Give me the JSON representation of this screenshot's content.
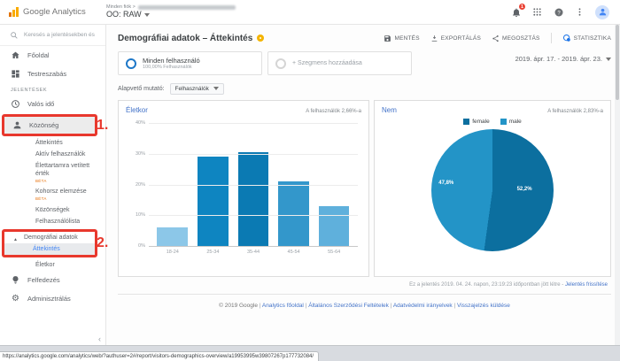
{
  "topbar": {
    "brand": "Google Analytics",
    "account_path": "Minden fiók >",
    "account_name": "OO: RAW",
    "notification_count": "1"
  },
  "sidebar": {
    "search_placeholder": "Keresés a jelentésekben és",
    "home": "Főoldal",
    "customization": "Testreszabás",
    "reports_section": "JELENTÉSEK",
    "realtime": "Valós idő",
    "audience": "Közönség",
    "audience_overview": "Áttekintés",
    "active_users": "Aktív felhasználók",
    "lifetime_value": "Élettartamra vetített érték",
    "beta_badge": "BÉTA",
    "cohort": "Kohorsz elemzése",
    "audiences": "Közönségek",
    "user_explorer": "Felhasználólista",
    "demographics": "Demográfiai adatok",
    "demographics_overview": "Áttekintés",
    "demographics_age": "Életkor",
    "discover": "Felfedezés",
    "admin": "Adminisztrálás"
  },
  "annotations": {
    "step1": "1.",
    "step2": "2."
  },
  "report_header": {
    "title": "Demográfiai adatok – Áttekintés",
    "save": "MENTÉS",
    "export": "EXPORTÁLÁS",
    "share": "MEGOSZTÁS",
    "insights": "STATISZTIKA",
    "date_range": "2019. ápr. 17. - 2019. ápr. 23."
  },
  "segments": {
    "all_users_title": "Minden felhasználó",
    "all_users_subtitle": "100,00% Felhasználók",
    "add_segment": "+ Szegmens hozzáadása"
  },
  "metric_selector": {
    "label": "Alapvető mutató:",
    "value": "Felhasználók"
  },
  "chart_data": [
    {
      "type": "bar",
      "title": "Életkor",
      "subtitle": "A felhasználók 2,66%-a",
      "categories": [
        "18-24",
        "25-34",
        "35-44",
        "45-54",
        "55-64"
      ],
      "values": [
        6,
        29,
        30.5,
        21,
        13
      ],
      "colors": [
        "#8cc7e8",
        "#0e85c1",
        "#0b7ab3",
        "#3397cb",
        "#5fb0dc"
      ],
      "xlabel": "",
      "ylabel": "",
      "ylim": [
        0,
        40
      ],
      "yticks": [
        "40%",
        "30%",
        "20%",
        "10%",
        "0%"
      ],
      "grid": true,
      "legend_position": "none"
    },
    {
      "type": "pie",
      "title": "Nem",
      "subtitle": "A felhasználók 2,83%-a",
      "slices": [
        {
          "name": "female",
          "value": 52.2,
          "label": "52,2%",
          "color": "#0c6f9f"
        },
        {
          "name": "male",
          "value": 47.8,
          "label": "47,8%",
          "color": "#2394c7"
        }
      ],
      "legend_position": "top"
    }
  ],
  "report_footer": {
    "generated_note": "Ez a jelentés 2019. 04. 24. napon, 23:19:23 időpontban jött létre -",
    "refresh_link": "Jelentés frissítése",
    "copyright": "© 2019 Google",
    "separator": "|",
    "links": [
      "Analytics főoldal",
      "Általános Szerződési Feltételek",
      "Adatvédelmi irányelvek",
      "Visszajelzés küldése"
    ]
  },
  "statusbar": {
    "url": "https://analytics.google.com/analytics/web/?authuser=2#/report/visitors-demographics-overview/a19953995w39807267p177732084/"
  }
}
